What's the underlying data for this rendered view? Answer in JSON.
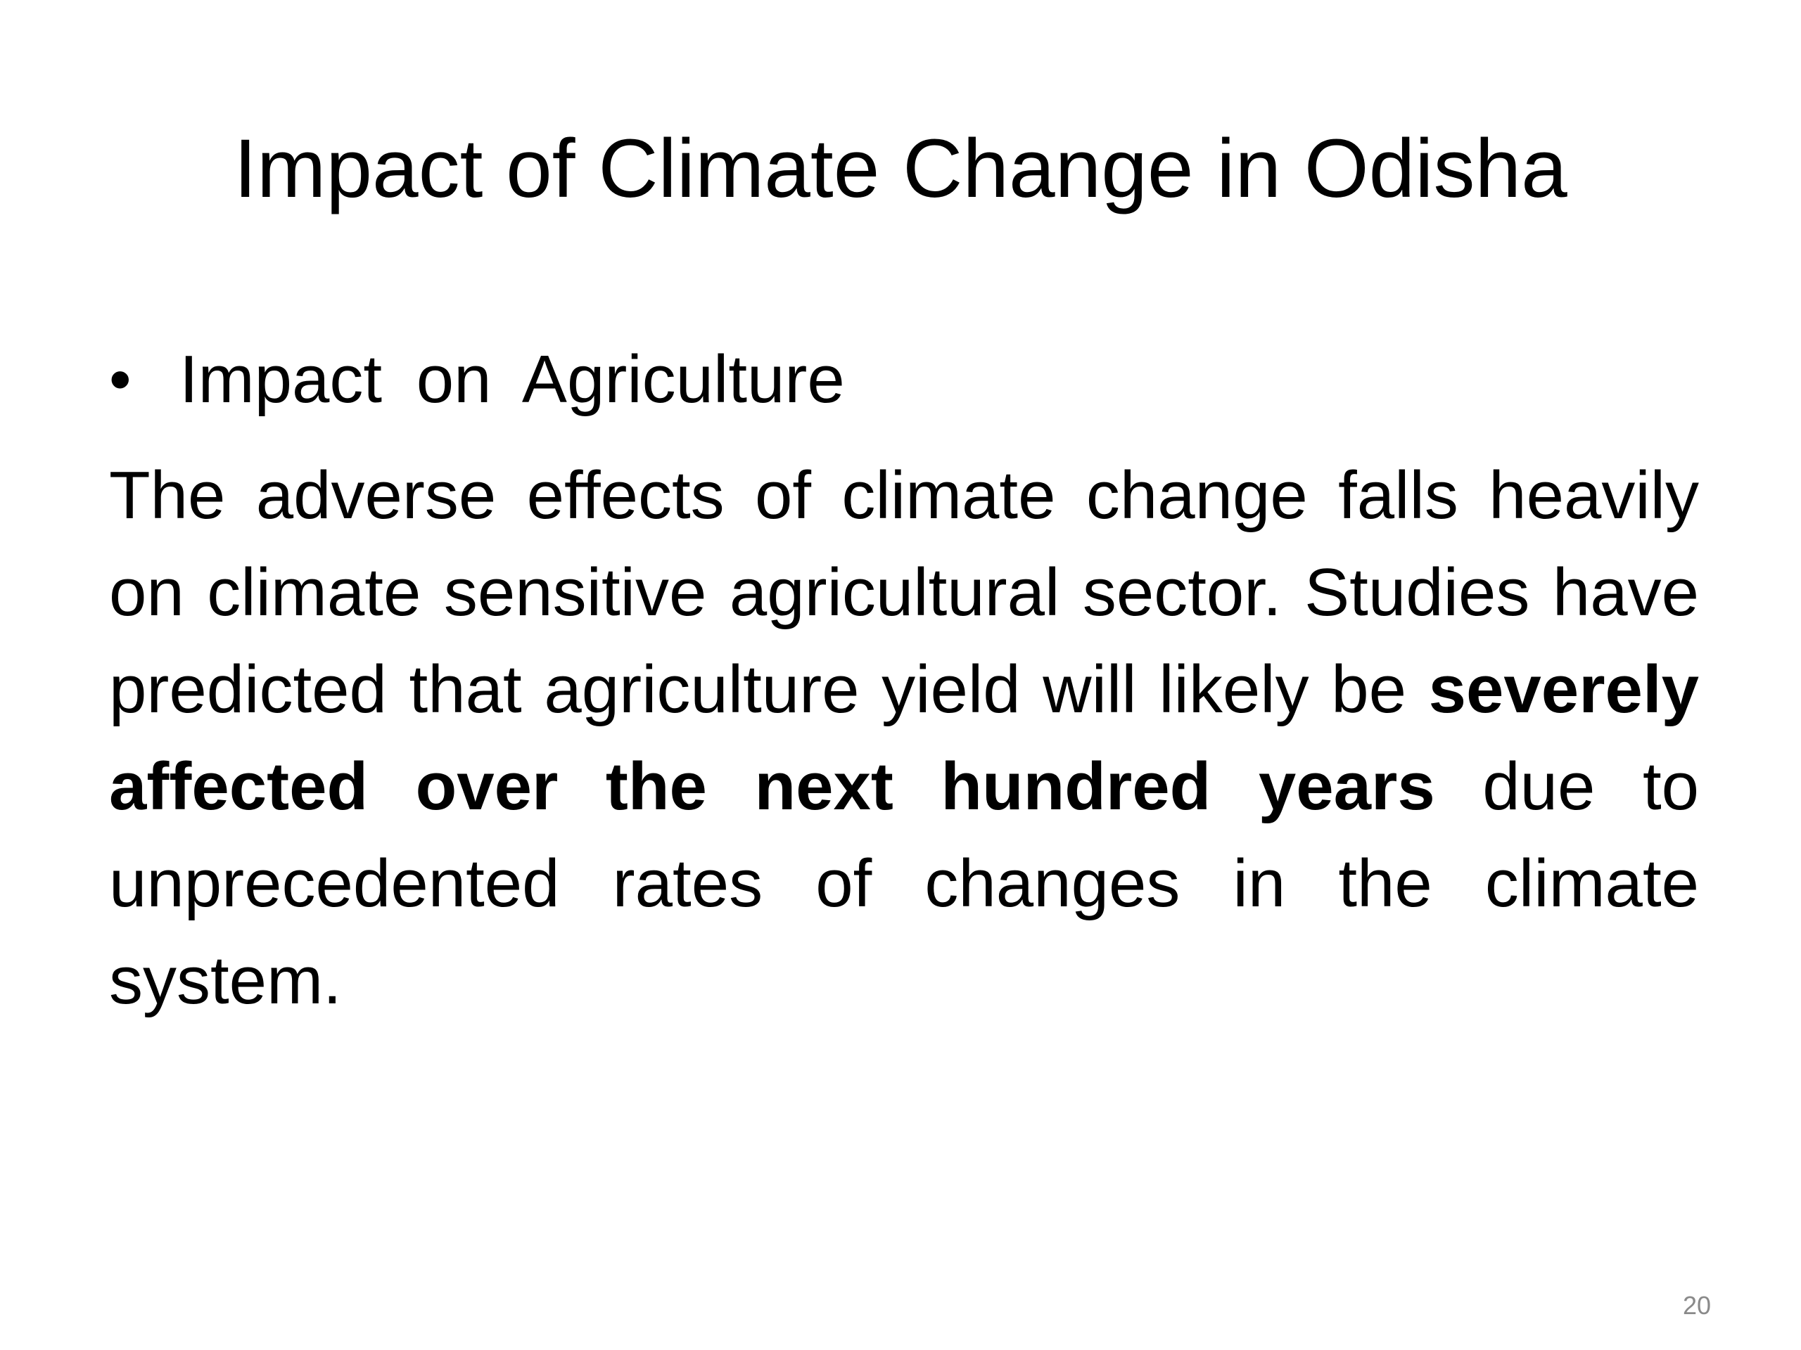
{
  "slide": {
    "title": "Impact of Climate Change in Odisha",
    "bullet": {
      "marker": "•",
      "text": "Impact  on  Agriculture"
    },
    "paragraph": {
      "part1": "The adverse effects of climate change falls heavily on climate sensitive agricultural sector. Studies have predicted that agriculture yield will likely be ",
      "emphasis": "severely affected over the next hundred years",
      "part2": " due to unprecedented rates of changes in the climate system."
    },
    "page_number": "20"
  }
}
